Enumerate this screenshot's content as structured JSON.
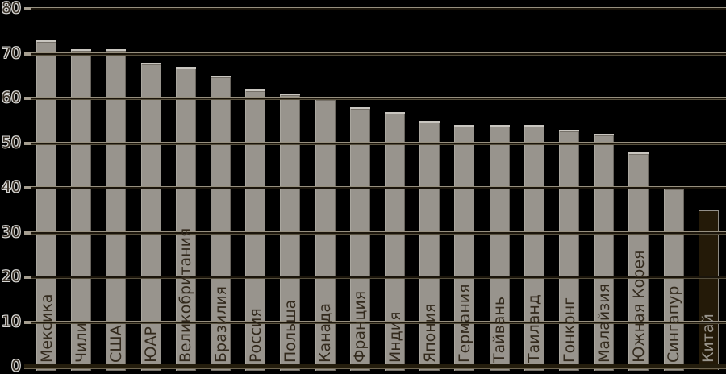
{
  "chart_data": {
    "type": "bar",
    "title": "",
    "xlabel": "",
    "ylabel": "",
    "categories": [
      "Мексика",
      "Чили",
      "США",
      "ЮАР",
      "Великобритания",
      "Бразилия",
      "Россия",
      "Польша",
      "Канада",
      "Франция",
      "Индия",
      "Япония",
      "Германия",
      "Тайвань",
      "Таиланд",
      "Гонконг",
      "Малайзия",
      "Южная Корея",
      "Сингапур",
      "Китай"
    ],
    "values": [
      73,
      71,
      71,
      68,
      67,
      65,
      62,
      61,
      60,
      58,
      57,
      55,
      54,
      54,
      54,
      53,
      52,
      48,
      40,
      35
    ],
    "ylim": [
      0,
      80
    ],
    "ytick_step": 10,
    "ytick_labels": [
      "0",
      "10",
      "20",
      "30",
      "40",
      "50",
      "60",
      "70",
      "80"
    ],
    "grid": true,
    "legend_position": "none",
    "bar_label_orientation": "vertical",
    "highlight_category": "Китай",
    "highlight_index": 19,
    "colors": {
      "background": "#000000",
      "bar_fill": "#98948d",
      "bar_top_edge": "#c9c6c0",
      "highlight_bar_fill": "#241a08",
      "highlight_bar_edge": "#8d8a83",
      "gridline_dark": "#1b150b",
      "gridline_light": "#97907f",
      "axis_text": "#3a3127",
      "axis_text_halo": "#d6d6d4",
      "bar_label_text": "#32291c",
      "highlight_bar_label_text": "#9a968e"
    }
  }
}
